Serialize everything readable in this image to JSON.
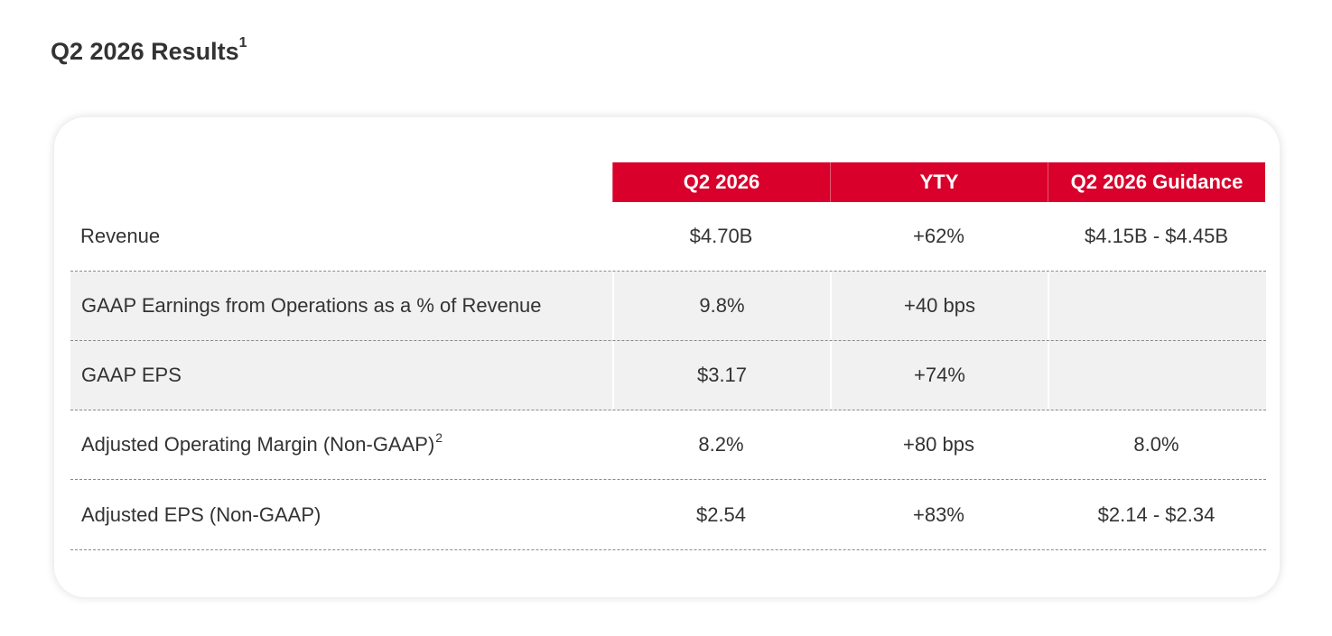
{
  "title": {
    "text": "Q2 2026 Results",
    "footnote": "1"
  },
  "table": {
    "columns": [
      "Q2 2026",
      "YTY",
      "Q2 2026 Guidance"
    ],
    "rows": [
      {
        "label": "Revenue",
        "footnote": "",
        "q2": "$4.70B",
        "yty": "+62%",
        "guidance": "$4.15B - $4.45B"
      },
      {
        "label": "GAAP Earnings from Operations as a % of Revenue",
        "footnote": "",
        "q2": "9.8%",
        "yty": "+40 bps",
        "guidance": ""
      },
      {
        "label": "GAAP EPS",
        "footnote": "",
        "q2": "$3.17",
        "yty": "+74%",
        "guidance": ""
      },
      {
        "label": "Adjusted Operating Margin (Non-GAAP)",
        "footnote": "2",
        "q2": "8.2%",
        "yty": "+80 bps",
        "guidance": "8.0%"
      },
      {
        "label": "Adjusted EPS (Non-GAAP)",
        "footnote": "",
        "q2": "$2.54",
        "yty": "+83%",
        "guidance": "$2.14 - $2.34"
      }
    ]
  },
  "colors": {
    "header_bg": "#d9002b",
    "header_text": "#ffffff",
    "shaded_row_bg": "#f1f1f1",
    "text": "#333333"
  }
}
